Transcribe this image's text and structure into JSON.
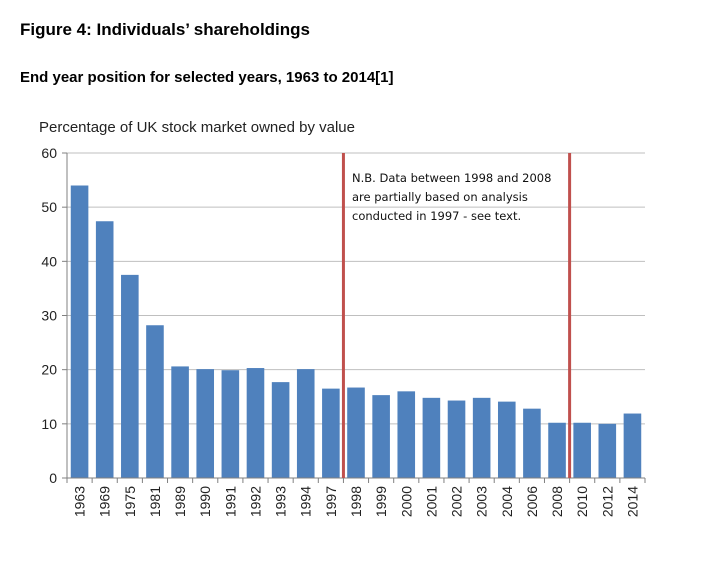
{
  "figure": {
    "title": "Figure 4: Individuals’ shareholdings",
    "subtitle": "End year position for selected years, 1963 to 2014[1]"
  },
  "chart_data": {
    "type": "bar",
    "ylabel": "Percentage of UK stock market owned by value",
    "xlabel": "",
    "ylim": [
      0,
      60
    ],
    "yticks": [
      0,
      10,
      20,
      30,
      40,
      50,
      60
    ],
    "grid": true,
    "categories": [
      "1963",
      "1969",
      "1975",
      "1981",
      "1989",
      "1990",
      "1991",
      "1992",
      "1993",
      "1994",
      "1997",
      "1998",
      "1999",
      "2000",
      "2001",
      "2002",
      "2003",
      "2004",
      "2006",
      "2008",
      "2010",
      "2012",
      "2014"
    ],
    "values": [
      54,
      47.4,
      37.5,
      28.2,
      20.6,
      20.1,
      19.9,
      20.3,
      17.7,
      20.1,
      16.5,
      16.7,
      15.3,
      16,
      14.8,
      14.3,
      14.8,
      14.1,
      12.8,
      10.2,
      10.2,
      10,
      11.9
    ],
    "bar_color": "#4F81BD",
    "marker_color": "#C0504D",
    "markers_after_categories": [
      "1997",
      "2008"
    ],
    "annotation": [
      "N.B. Data between 1998 and 2008",
      "are partially based on analysis",
      "conducted in 1997 - see text."
    ]
  }
}
